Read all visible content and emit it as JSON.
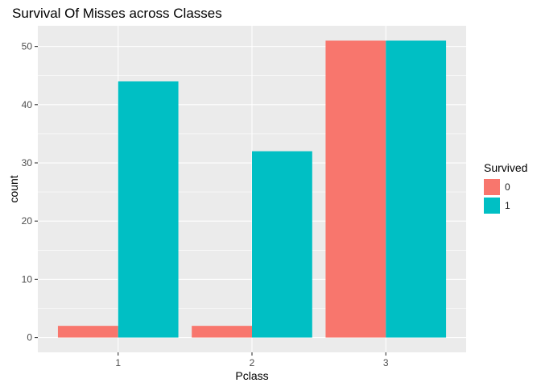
{
  "chart_data": {
    "type": "bar",
    "title": "Survival Of Misses across Classes",
    "xlabel": "Pclass",
    "ylabel": "count",
    "categories": [
      "1",
      "2",
      "3"
    ],
    "series": [
      {
        "name": "0",
        "values": [
          2,
          2,
          51
        ],
        "color": "#F8766D"
      },
      {
        "name": "1",
        "values": [
          44,
          32,
          51
        ],
        "color": "#00BFC4"
      }
    ],
    "ylim": [
      -2.55,
      53.55
    ],
    "yticks": [
      0,
      10,
      20,
      30,
      40,
      50
    ],
    "legend": {
      "title": "Survived",
      "placement": "right"
    },
    "grid": true,
    "panel_background": "#EBEBEB"
  }
}
